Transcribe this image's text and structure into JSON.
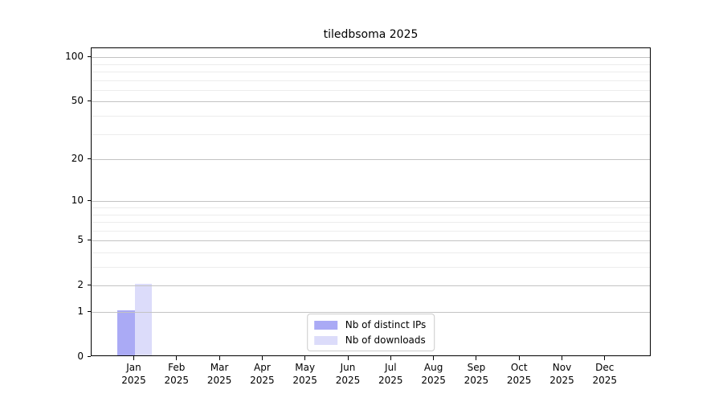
{
  "chart_data": {
    "type": "bar",
    "title": "tiledbsoma 2025",
    "categories": [
      "Jan",
      "Feb",
      "Mar",
      "Apr",
      "May",
      "Jun",
      "Jul",
      "Aug",
      "Sep",
      "Oct",
      "Nov",
      "Dec"
    ],
    "category_sublabel": "2025",
    "series": [
      {
        "name": "Nb of distinct IPs",
        "color": "#aaaaf5",
        "values": [
          1,
          0,
          0,
          0,
          0,
          0,
          0,
          0,
          0,
          0,
          0,
          0
        ]
      },
      {
        "name": "Nb of downloads",
        "color": "#dcdcfa",
        "values": [
          2,
          0,
          0,
          0,
          0,
          0,
          0,
          0,
          0,
          0,
          0,
          0
        ]
      }
    ],
    "y_axis": {
      "scale": "log1p",
      "lim": [
        0,
        115
      ],
      "major_ticks": [
        0,
        1,
        2,
        5,
        10,
        20,
        50,
        100
      ],
      "minor_ticks": [
        3,
        4,
        6,
        7,
        8,
        9,
        30,
        40,
        60,
        70,
        80,
        90
      ]
    },
    "grid": true,
    "legend_position": "bottom-center",
    "colors": {
      "spine": "#000000",
      "grid_major": "#c3c3c3",
      "grid_minor": "#ececec",
      "background": "#ffffff"
    }
  }
}
